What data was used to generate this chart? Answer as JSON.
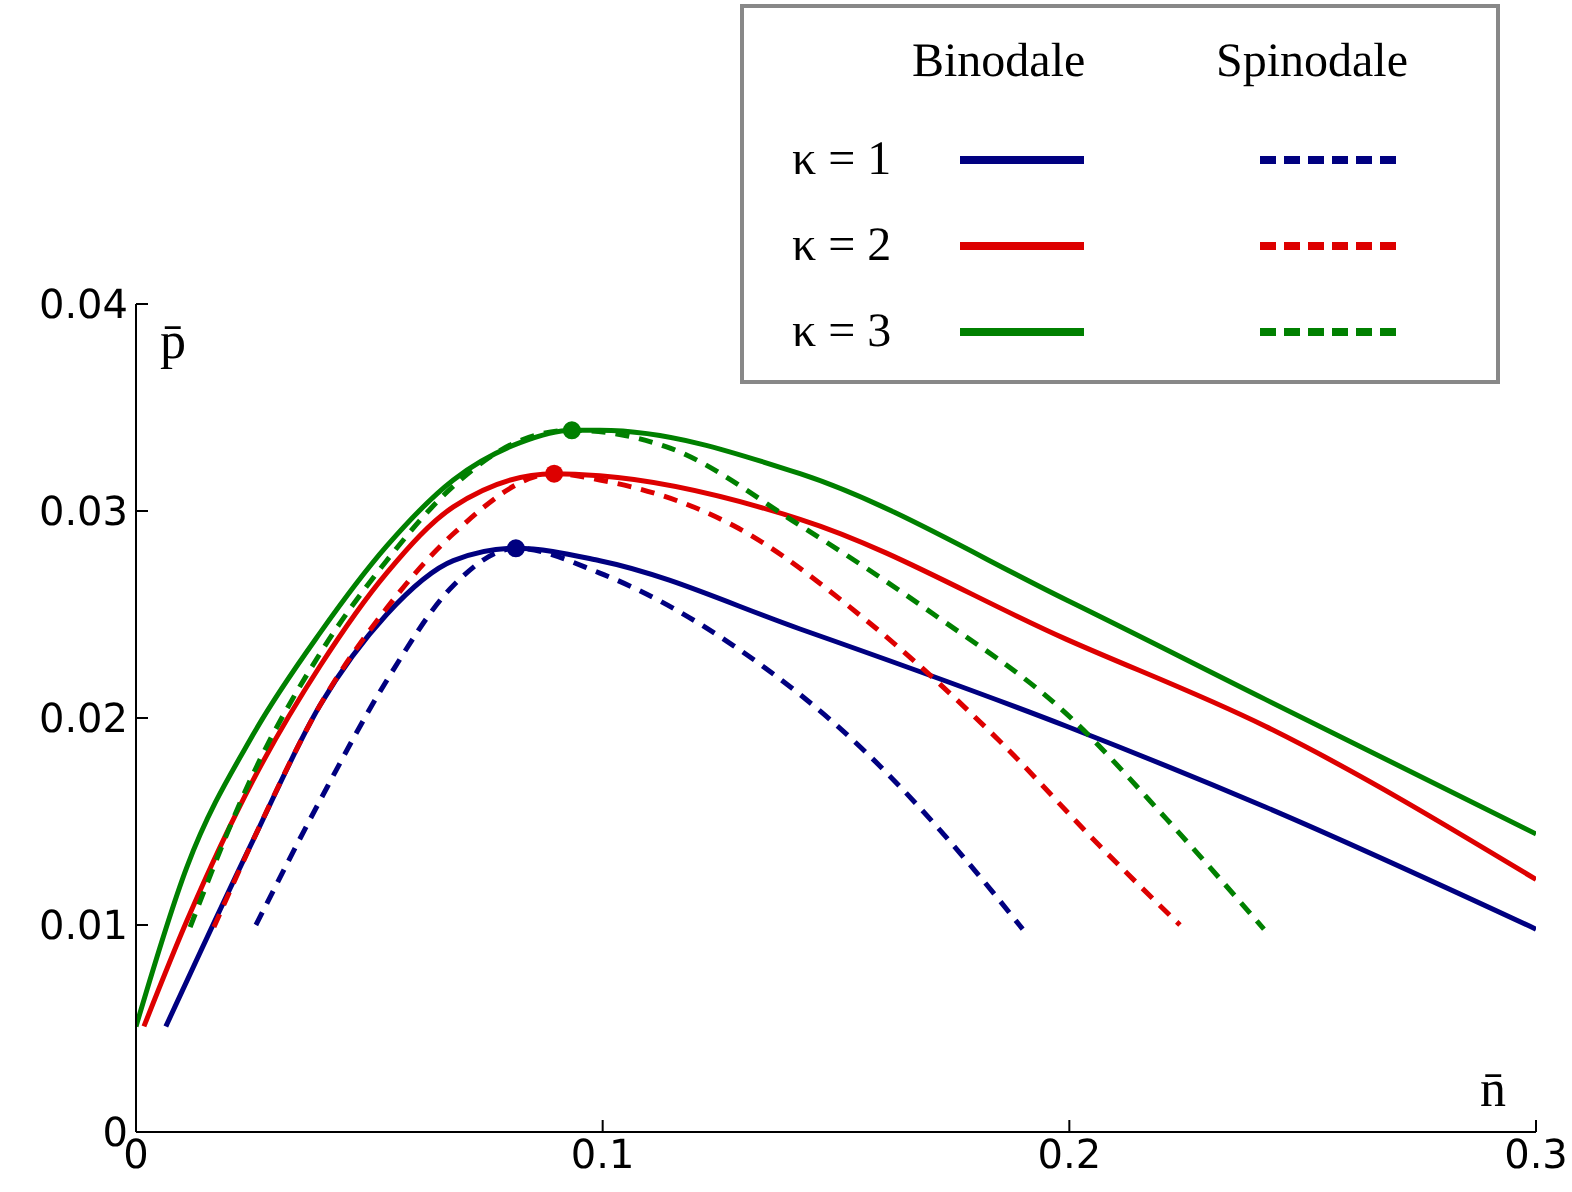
{
  "chart_data": {
    "type": "line",
    "xlabel": "n̄",
    "ylabel": "p̄",
    "xlim": [
      0,
      0.3
    ],
    "xticks": [
      0,
      0.1,
      0.2,
      0.3
    ],
    "ylim": [
      0,
      0.04
    ],
    "yticks": [
      0,
      0.01,
      0.02,
      0.03,
      0.04
    ],
    "grid": false,
    "legend": "top right",
    "annotations": [
      "Binodale",
      "Spinodale"
    ],
    "series": [
      {
        "name": "κ = 1",
        "line_style": "solid",
        "color": "#000080",
        "x": [
          0.0064,
          0.0251,
          0.0394,
          0.0537,
          0.068,
          0.0814,
          0.0994,
          0.1423,
          0.1994,
          0.242,
          0.3
        ],
        "values": [
          0.0051,
          0.0141,
          0.0206,
          0.025,
          0.0276,
          0.0282,
          0.0276,
          0.0243,
          0.0196,
          0.0157,
          0.0098
        ]
      },
      {
        "name": "κ = 2",
        "line_style": "solid",
        "color": "#dd0000",
        "x": [
          0.0017,
          0.0109,
          0.0251,
          0.0394,
          0.0537,
          0.068,
          0.0896,
          0.0994,
          0.1423,
          0.1994,
          0.242,
          0.3
        ],
        "values": [
          0.0051,
          0.0102,
          0.017,
          0.0225,
          0.027,
          0.0302,
          0.0318,
          0.0317,
          0.0296,
          0.0238,
          0.0196,
          0.0122
        ]
      },
      {
        "name": "κ = 3",
        "line_style": "solid",
        "color": "#008000",
        "x": [
          0.0,
          0.0109,
          0.0251,
          0.0394,
          0.0537,
          0.068,
          0.0823,
          0.0934,
          0.0994,
          0.1423,
          0.1994,
          0.242,
          0.3
        ],
        "values": [
          0.0051,
          0.0128,
          0.0192,
          0.0241,
          0.0283,
          0.0315,
          0.0333,
          0.0339,
          0.0339,
          0.0318,
          0.0257,
          0.0209,
          0.0144
        ]
      },
      {
        "line_style": "dashed",
        "color": "#000080",
        "x": [
          0.0257,
          0.0394,
          0.0537,
          0.068,
          0.0814,
          0.0994,
          0.128,
          0.1566,
          0.178,
          0.19
        ],
        "values": [
          0.01,
          0.016,
          0.0218,
          0.0264,
          0.0282,
          0.027,
          0.0235,
          0.0183,
          0.0131,
          0.0098
        ]
      },
      {
        "line_style": "dashed",
        "color": "#dd0000",
        "x": [
          0.0167,
          0.0251,
          0.0394,
          0.0537,
          0.068,
          0.0896,
          0.0994,
          0.128,
          0.1566,
          0.185,
          0.2066,
          0.2237
        ],
        "values": [
          0.0099,
          0.0141,
          0.0206,
          0.0253,
          0.0289,
          0.0318,
          0.0315,
          0.0293,
          0.0247,
          0.0189,
          0.0138,
          0.01
        ]
      },
      {
        "line_style": "dashed",
        "color": "#008000",
        "x": [
          0.0116,
          0.0251,
          0.0394,
          0.0537,
          0.068,
          0.0823,
          0.0934,
          0.1137,
          0.1423,
          0.171,
          0.1994,
          0.2209,
          0.2417
        ],
        "values": [
          0.0099,
          0.0173,
          0.0231,
          0.0276,
          0.0312,
          0.0334,
          0.0339,
          0.0331,
          0.0293,
          0.025,
          0.0202,
          0.0151,
          0.0098
        ]
      },
      {
        "type": "scatter",
        "marker": "circle",
        "color": "#000080",
        "x": [
          0.0814
        ],
        "values": [
          0.0282
        ]
      },
      {
        "type": "scatter",
        "marker": "circle",
        "color": "#dd0000",
        "x": [
          0.0896
        ],
        "values": [
          0.0318
        ]
      },
      {
        "type": "scatter",
        "marker": "circle",
        "color": "#008000",
        "x": [
          0.0934
        ],
        "values": [
          0.0339
        ]
      }
    ]
  }
}
